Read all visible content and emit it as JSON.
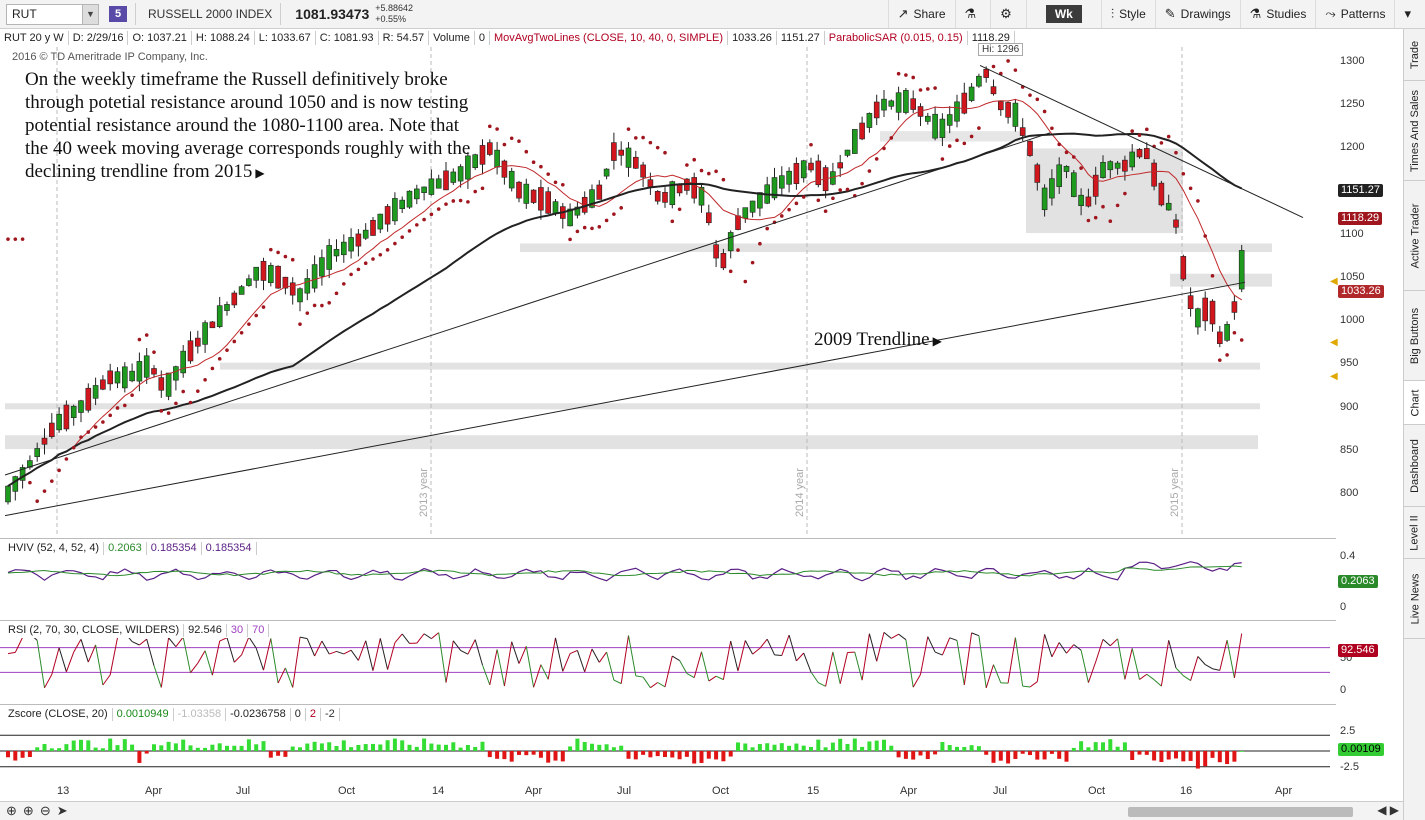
{
  "toolbar": {
    "symbol": "RUT",
    "badge": "5",
    "index_name": "RUSSELL 2000 INDEX",
    "last_price": "1081.93473",
    "change_abs": "+5.88642",
    "change_pct": "+0.55%",
    "share": "Share",
    "timeframe": "Wk",
    "style": "Style",
    "drawings": "Drawings",
    "studies": "Studies",
    "patterns": "Patterns"
  },
  "info": {
    "period": "RUT 20 y W",
    "date": "D: 2/29/16",
    "open": "O: 1037.21",
    "high": "H: 1088.24",
    "low": "L: 1033.67",
    "close": "C: 1081.93",
    "range": "R: 54.57",
    "volume": "Volume",
    "volume_val": "0",
    "ma_study": "MovAvgTwoLines (CLOSE, 10, 40, 0, SIMPLE)",
    "ma1": "1033.26",
    "ma2": "1151.27",
    "sar_study": "ParabolicSAR (0.015, 0.15)",
    "sar_val": "1118.29"
  },
  "copyright": "2016 © TD Ameritrade IP Company, Inc.",
  "hi_label": "Hi: 1296",
  "annotation": "On the weekly timeframe the Russell definitively broke through potetial resistance around 1050 and is now testing potential resistance around the 1080-1100 area.  Note that the 40 week moving average corresponds roughly with the declining trendline from 2015",
  "trendline_label": "2009 Trendline",
  "price_axis": {
    "ticks": [
      "1300",
      "1250",
      "1200",
      "1150",
      "1100",
      "1050",
      "1000",
      "950",
      "900",
      "850",
      "800"
    ],
    "tags": {
      "ma40": "1151.27",
      "sar": "1118.29",
      "ma10": "1033.26"
    }
  },
  "year_labels": [
    "2013 year",
    "2014 year",
    "2015 year"
  ],
  "hviv": {
    "label": "HVIV (52, 4, 52, 4)",
    "v1": "0.2063",
    "v2": "0.185354",
    "v3": "0.185354",
    "ticks": [
      "0.4",
      "0"
    ],
    "tag": "0.2063"
  },
  "rsi": {
    "label": "RSI (2, 70, 30, CLOSE, WILDERS)",
    "value": "92.546",
    "low": "30",
    "high": "70",
    "ticks": [
      "50",
      "0"
    ],
    "tag": "92.546"
  },
  "zscore": {
    "label": "Zscore (CLOSE, 20)",
    "v1": "0.0010949",
    "v2": "-1.03358",
    "v3": "-0.0236758",
    "v4": "0",
    "v5": "2",
    "v6": "-2",
    "ticks": [
      "2.5",
      "-2.5"
    ],
    "tag": "0.00109"
  },
  "x_axis": [
    "13",
    "Apr",
    "Jul",
    "Oct",
    "14",
    "Apr",
    "Jul",
    "Oct",
    "15",
    "Apr",
    "Jul",
    "Oct",
    "16",
    "Apr"
  ],
  "sidebar_tabs": [
    "Trade",
    "Times And Sales",
    "Active Trader",
    "Big Buttons",
    "Chart",
    "Dashboard",
    "Level II",
    "Live News"
  ],
  "colors": {
    "up": "#1e9b1e",
    "down": "#d2161e",
    "ma10": "#c0282a",
    "ma40": "#222222",
    "sar": "#a0161e",
    "hviv1": "#5a1f86",
    "hviv2": "#2a8a2a",
    "zpos": "#33dd33",
    "zneg": "#e01414"
  }
}
